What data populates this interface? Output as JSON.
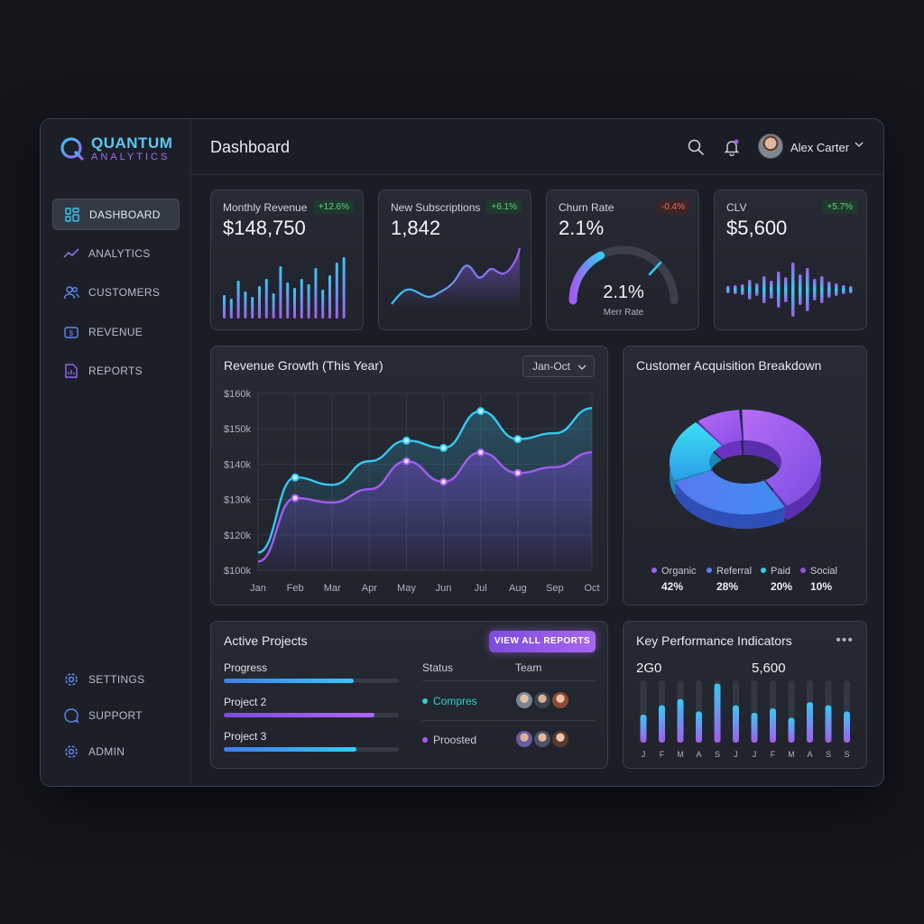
{
  "app": {
    "name_line1": "QUANTUM",
    "name_line2": "ANALYTICS"
  },
  "sidebar": {
    "items": [
      {
        "label": "DASHBOARD",
        "icon": "grid-icon"
      },
      {
        "label": "ANALYTICS",
        "icon": "trend-icon"
      },
      {
        "label": "CUSTOMERS",
        "icon": "users-icon"
      },
      {
        "label": "REVENUE",
        "icon": "dollar-icon"
      },
      {
        "label": "REPORTS",
        "icon": "document-icon"
      }
    ],
    "bottom_items": [
      {
        "label": "SETTINGS",
        "icon": "gear-icon"
      },
      {
        "label": "SUPPORT",
        "icon": "chat-icon"
      },
      {
        "label": "ADMIN",
        "icon": "gear-icon"
      }
    ]
  },
  "header": {
    "title": "Dashboard",
    "user_name": "Alex Carter"
  },
  "kpis": [
    {
      "label": "Monthly Revenue",
      "value": "$148,750",
      "badge": "+12.6%"
    },
    {
      "label": "New Subscriptions",
      "value": "1,842",
      "badge": "+6.1%"
    },
    {
      "label": "Churn Rate",
      "value": "2.1%",
      "badge": "-0.4%",
      "gauge_value": "2.1%",
      "gauge_label": "Merr Rate",
      "gauge_fraction": 0.55
    },
    {
      "label": "CLV",
      "value": "$5,600",
      "badge": "+5.7%"
    }
  ],
  "revenue_growth": {
    "title": "Revenue Growth (This Year)",
    "range": "Jan-Oct"
  },
  "acquisition": {
    "title": "Customer Acquisition Breakdown",
    "segments": [
      {
        "name": "Organic",
        "pct": "42%",
        "color": "#a35cf0"
      },
      {
        "name": "Referral",
        "pct": "28%",
        "color": "#5e7cf0"
      },
      {
        "name": "Paid",
        "pct": "20%",
        "color": "#2fd0ea"
      },
      {
        "name": "Social",
        "pct": "10%",
        "color": "#9a52e8"
      }
    ]
  },
  "projects": {
    "title": "Active Projects",
    "button": "VIEW ALL REPORTS",
    "col_status": "Status",
    "col_team": "Team",
    "rows": [
      {
        "label": "Progress",
        "progress": 0.74
      },
      {
        "label": "Project 2",
        "progress": 0.86
      },
      {
        "label": "Project 3",
        "progress": 0.76
      }
    ],
    "statuses": [
      {
        "text": "Compres",
        "color": "#2fd0c7"
      },
      {
        "text": "Proosted",
        "color": "#a35cf0"
      }
    ]
  },
  "kpi_panel": {
    "title": "Key Performance Indicators",
    "value1": "2G0",
    "value2": "5,600"
  },
  "chart_data": [
    {
      "type": "line",
      "title": "Revenue Growth (This Year)",
      "categories": [
        "Jan",
        "Feb",
        "Mar",
        "Apr",
        "May",
        "Jun",
        "Jul",
        "Aug",
        "Sep",
        "Oct"
      ],
      "ylim": [
        100,
        160
      ],
      "ytick_labels": [
        "$160k",
        "$150k",
        "$140k",
        "$130k",
        "$120k",
        "$100k"
      ],
      "series": [
        {
          "values": [
            106,
            131.5,
            129,
            137,
            144,
            141.5,
            154,
            144.5,
            146.5,
            155
          ],
          "color": "#36c9f2"
        },
        {
          "values": [
            103,
            124.5,
            123,
            127.5,
            137,
            130,
            140,
            133,
            135,
            140
          ],
          "color": "#a35cf0"
        }
      ]
    },
    {
      "type": "pie",
      "title": "Customer Acquisition Breakdown",
      "categories": [
        "Organic",
        "Referral",
        "Paid",
        "Social"
      ],
      "values": [
        42,
        28,
        20,
        10
      ]
    },
    {
      "type": "bar",
      "title": "Key Performance Indicators",
      "categories": [
        "J",
        "F",
        "M",
        "A",
        "S",
        "J",
        "J",
        "F",
        "M",
        "A",
        "S",
        "S"
      ],
      "values": [
        0.45,
        0.6,
        0.7,
        0.5,
        0.95,
        0.6,
        0.48,
        0.55,
        0.4,
        0.65,
        0.6,
        0.5
      ]
    }
  ]
}
